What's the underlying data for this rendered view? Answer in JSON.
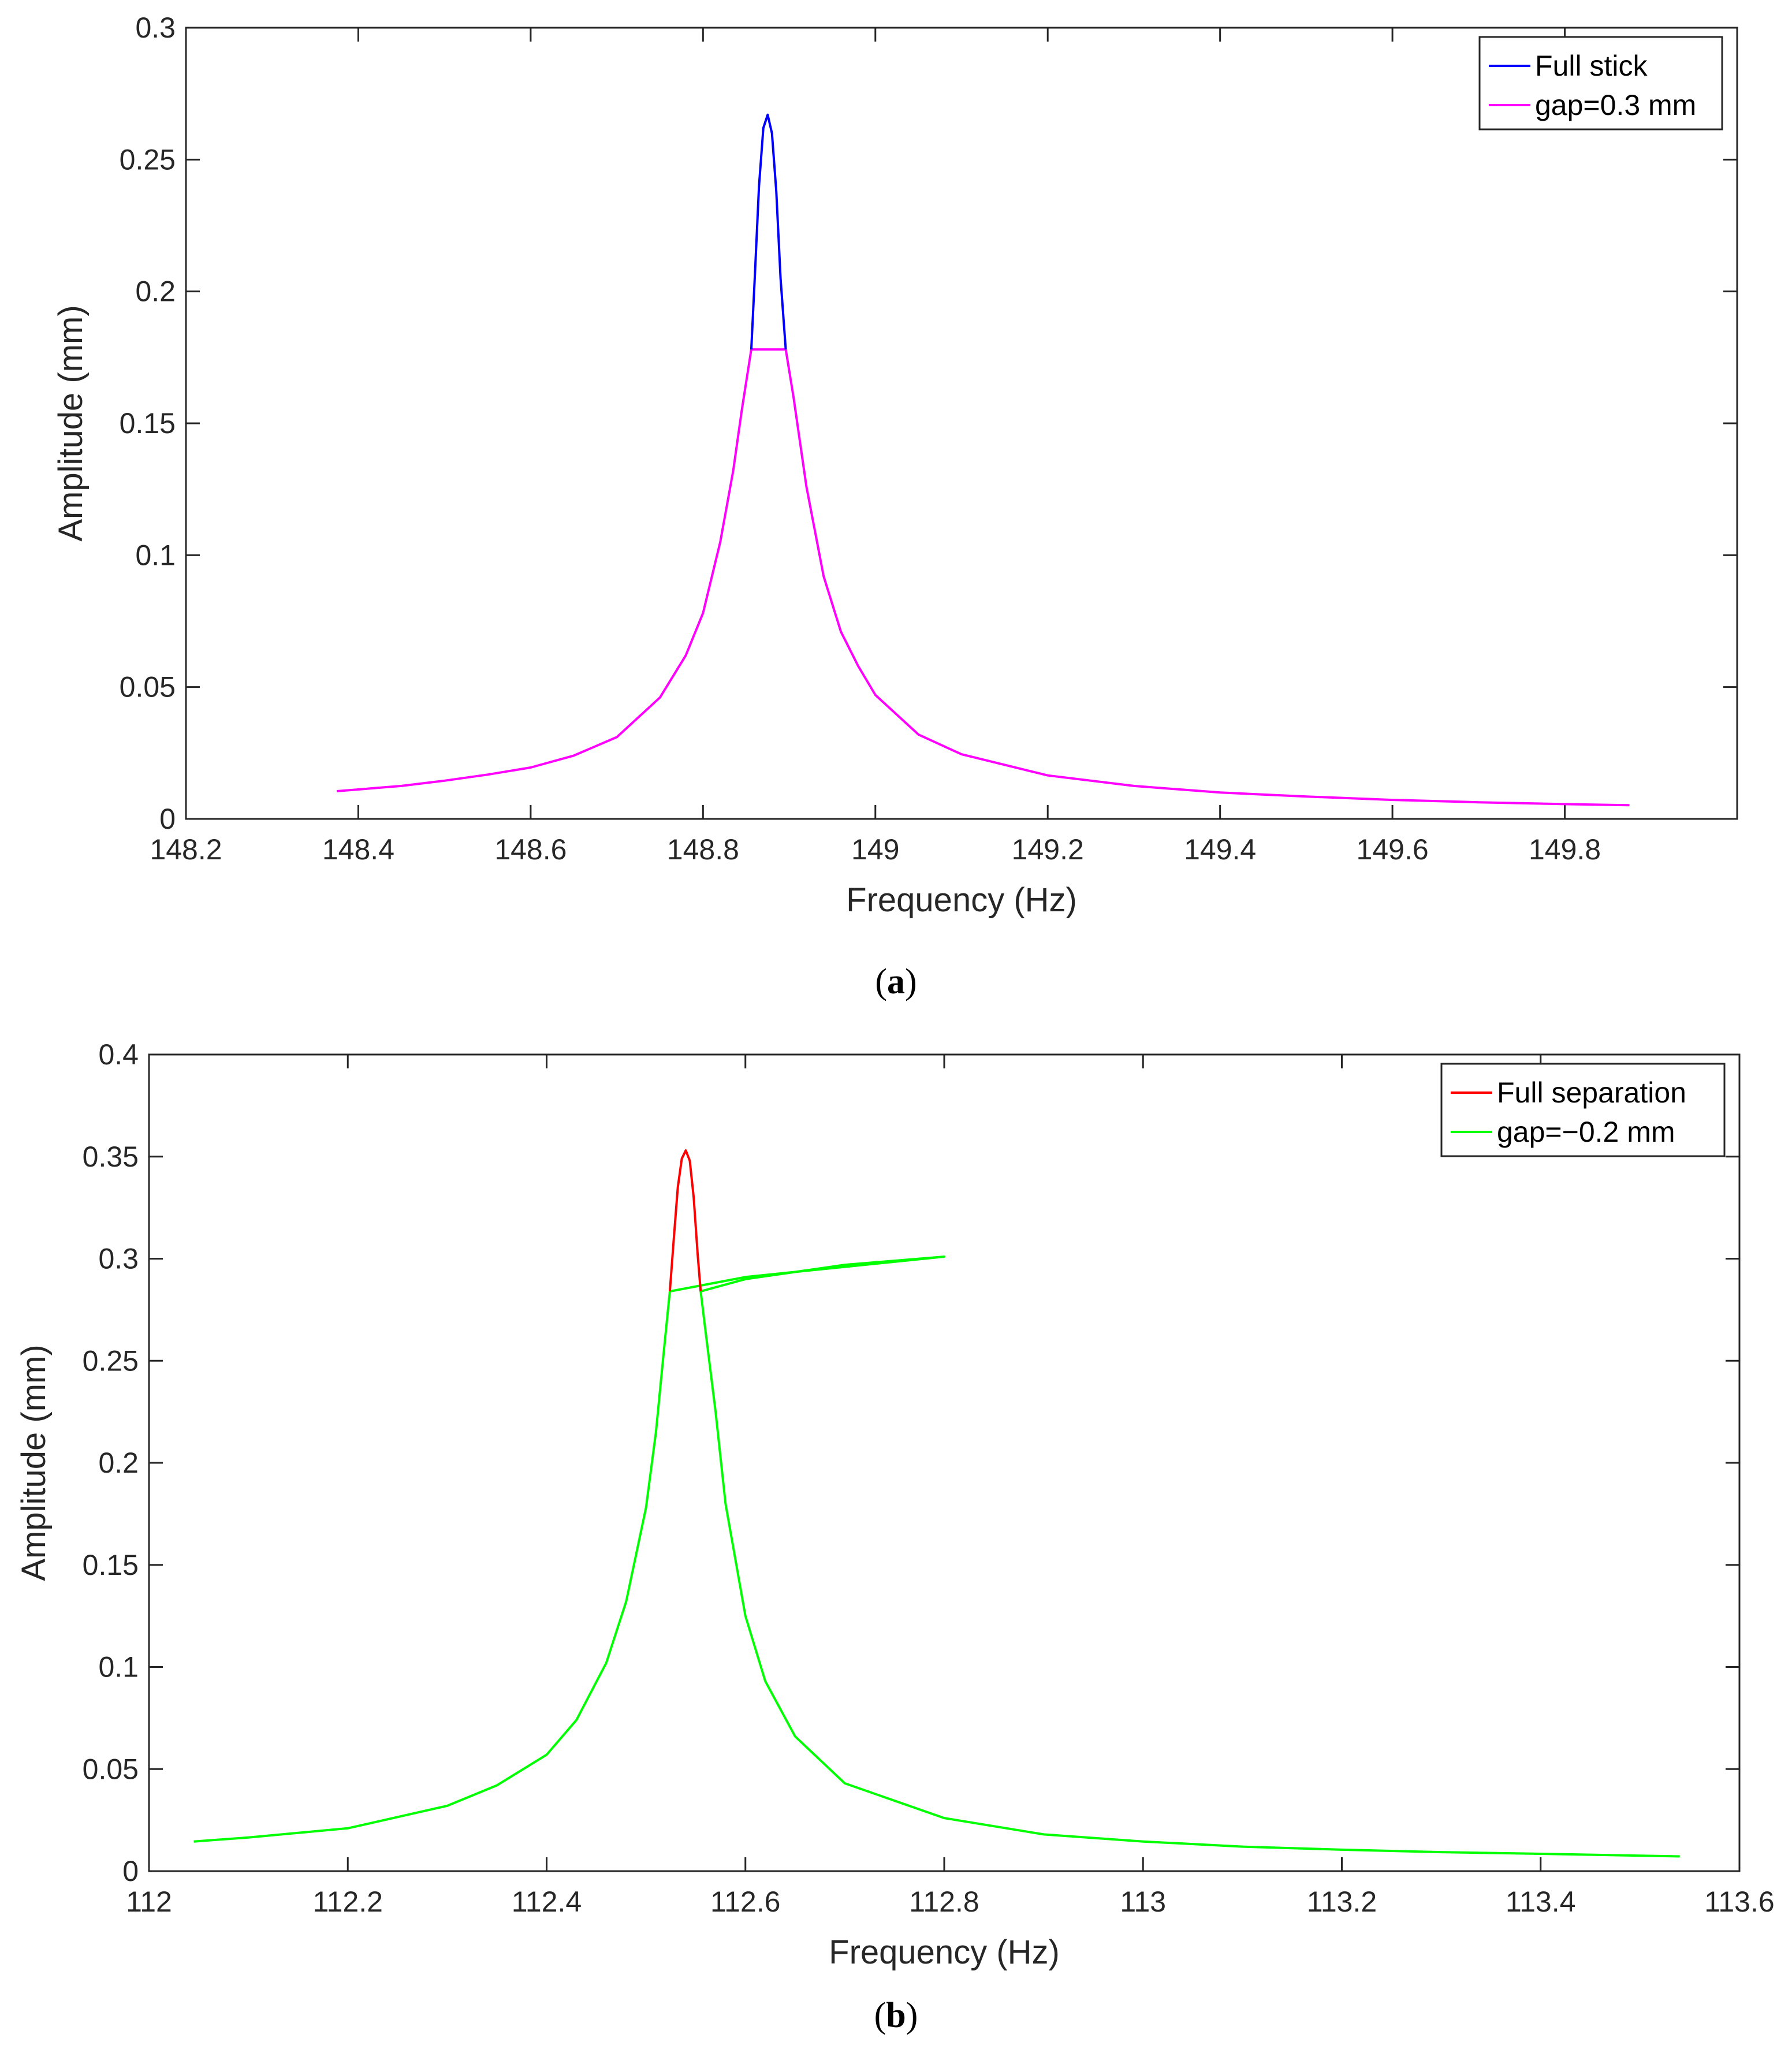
{
  "chart_data": [
    {
      "type": "line",
      "panel_label": "a",
      "xlabel": "Frequency (Hz)",
      "ylabel": "Amplitude (mm)",
      "xlim": [
        148.2,
        150.0
      ],
      "ylim": [
        0,
        0.3
      ],
      "xticks": [
        148.2,
        148.4,
        148.6,
        148.8,
        149,
        149.2,
        149.4,
        149.6,
        149.8
      ],
      "xtick_labels": [
        "148.2",
        "148.4",
        "148.6",
        "148.8",
        "149",
        "149.2",
        "149.4",
        "149.6",
        "149.8"
      ],
      "yticks": [
        0,
        0.05,
        0.1,
        0.15,
        0.2,
        0.25,
        0.3
      ],
      "ytick_labels": [
        "0",
        "0.05",
        "0.1",
        "0.15",
        "0.2",
        "0.25",
        "0.3"
      ],
      "grid": false,
      "legend_position": "top-right",
      "series": [
        {
          "name": "Full stick",
          "color": "#0000ff",
          "x": [
            148.856,
            148.86,
            148.865,
            148.87,
            148.875,
            148.88,
            148.885,
            148.89,
            148.896
          ],
          "y": [
            0.178,
            0.205,
            0.24,
            0.262,
            0.267,
            0.26,
            0.238,
            0.205,
            0.178
          ]
        },
        {
          "name": "gap=0.3 mm",
          "color": "#ff00ff",
          "x": [
            148.375,
            148.45,
            148.5,
            148.55,
            148.6,
            148.65,
            148.7,
            148.75,
            148.78,
            148.8,
            148.82,
            148.835,
            148.845,
            148.856,
            148.896,
            148.905,
            148.92,
            148.94,
            148.96,
            148.98,
            149.0,
            149.05,
            149.1,
            149.2,
            149.3,
            149.4,
            149.5,
            149.6,
            149.7,
            149.8,
            149.875
          ],
          "y": [
            0.0105,
            0.0125,
            0.0145,
            0.0168,
            0.0195,
            0.024,
            0.031,
            0.046,
            0.062,
            0.078,
            0.105,
            0.132,
            0.155,
            0.178,
            0.178,
            0.16,
            0.126,
            0.092,
            0.071,
            0.058,
            0.047,
            0.032,
            0.0245,
            0.0165,
            0.0125,
            0.01,
            0.0085,
            0.0072,
            0.0063,
            0.0056,
            0.0052
          ]
        }
      ]
    },
    {
      "type": "line",
      "panel_label": "b",
      "xlabel": "Frequency (Hz)",
      "ylabel": "Amplitude (mm)",
      "xlim": [
        112.0,
        113.6
      ],
      "ylim": [
        0,
        0.4
      ],
      "xticks": [
        112,
        112.2,
        112.4,
        112.6,
        112.8,
        113,
        113.2,
        113.4,
        113.6
      ],
      "xtick_labels": [
        "112",
        "112.2",
        "112.4",
        "112.6",
        "112.8",
        "113",
        "113.2",
        "113.4",
        "113.6"
      ],
      "yticks": [
        0,
        0.05,
        0.1,
        0.15,
        0.2,
        0.25,
        0.3,
        0.35,
        0.4
      ],
      "ytick_labels": [
        "0",
        "0.05",
        "0.1",
        "0.15",
        "0.2",
        "0.25",
        "0.3",
        "0.35",
        "0.4"
      ],
      "grid": false,
      "legend_position": "top-right",
      "series": [
        {
          "name": "Full separation",
          "color": "#ff0000",
          "x": [
            112.524,
            112.528,
            112.532,
            112.536,
            112.54,
            112.544,
            112.548,
            112.552,
            112.555
          ],
          "y": [
            0.284,
            0.31,
            0.335,
            0.349,
            0.353,
            0.348,
            0.33,
            0.302,
            0.284
          ]
        },
        {
          "name": "gap=−0.2 mm",
          "color": "#00ff00",
          "x": [
            112.045,
            112.1,
            112.2,
            112.3,
            112.35,
            112.4,
            112.43,
            112.46,
            112.48,
            112.5,
            112.51,
            112.518,
            112.524,
            112.6,
            112.7,
            112.8,
            112.7,
            112.6,
            112.555,
            112.56,
            112.57,
            112.58,
            112.6,
            112.62,
            112.65,
            112.7,
            112.8,
            112.9,
            113.0,
            113.1,
            113.2,
            113.3,
            113.4,
            113.54
          ],
          "y": [
            0.0145,
            0.0165,
            0.021,
            0.032,
            0.042,
            0.057,
            0.074,
            0.102,
            0.132,
            0.178,
            0.215,
            0.255,
            0.284,
            0.291,
            0.296,
            0.301,
            0.297,
            0.29,
            0.284,
            0.264,
            0.225,
            0.18,
            0.125,
            0.093,
            0.066,
            0.043,
            0.026,
            0.018,
            0.0145,
            0.012,
            0.0105,
            0.0093,
            0.0085,
            0.0072
          ]
        }
      ]
    }
  ],
  "captions": {
    "a": "a",
    "b": "b"
  }
}
